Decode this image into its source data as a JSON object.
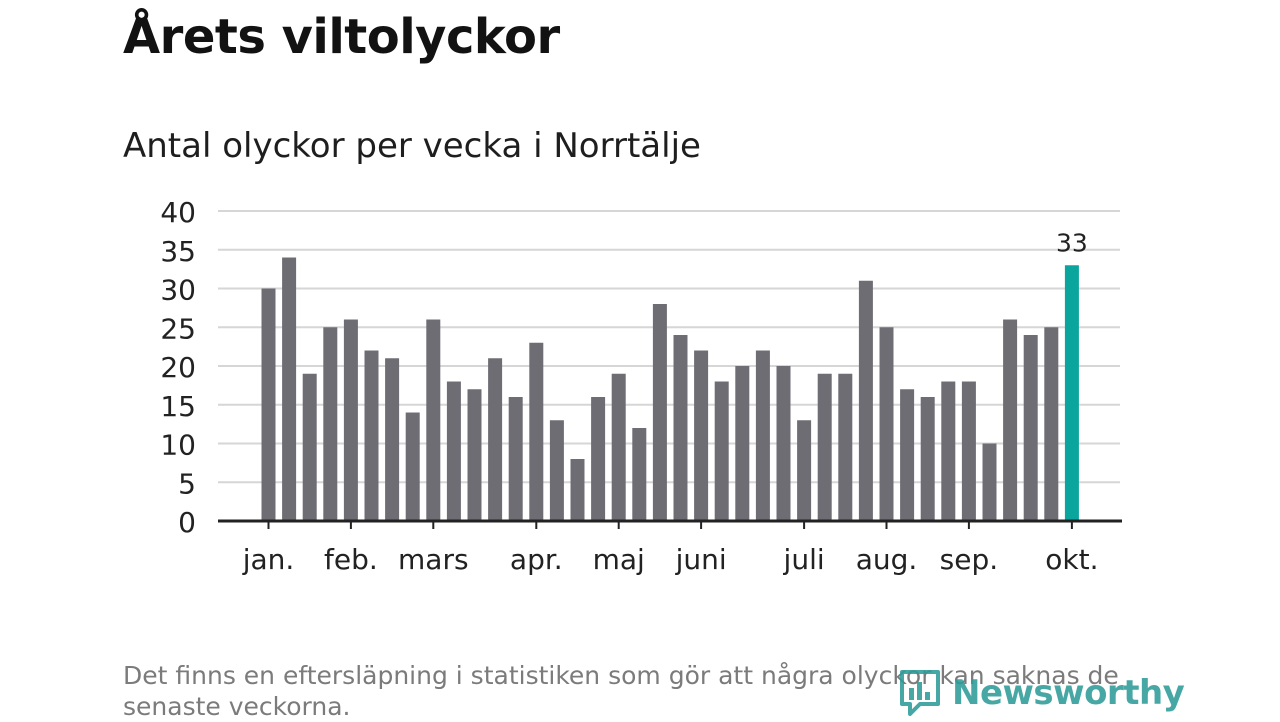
{
  "header": {
    "title": "Årets viltolyckor",
    "subtitle": "Antal olyckor per vecka i Norrtälje"
  },
  "footer": {
    "note": "Det finns en eftersläpning i statistiken som gör att några olyckor kan saknas de senaste veckorna.",
    "brand": "Newsworthy",
    "brand_icon": "bar-chart-icon"
  },
  "colors": {
    "bar": "#6f6d74",
    "highlight": "#0aa59c",
    "grid": "#d6d6d6",
    "axis": "#222222",
    "brand": "#2d9c98"
  },
  "chart_data": {
    "type": "bar",
    "title": "Antal olyckor per vecka i Norrtälje",
    "xlabel": "",
    "ylabel": "",
    "ylim": [
      0,
      40
    ],
    "yticks": [
      0,
      5,
      10,
      15,
      20,
      25,
      30,
      35,
      40
    ],
    "grid": true,
    "values": [
      30,
      34,
      19,
      25,
      26,
      22,
      21,
      14,
      26,
      18,
      17,
      21,
      16,
      23,
      13,
      8,
      16,
      19,
      12,
      28,
      24,
      22,
      18,
      20,
      22,
      20,
      13,
      19,
      19,
      31,
      25,
      17,
      16,
      18,
      18,
      10,
      26,
      24,
      25,
      33
    ],
    "highlight_index": 39,
    "highlight_label": "33",
    "month_labels": [
      {
        "label": "jan.",
        "bar_index": 0
      },
      {
        "label": "feb.",
        "bar_index": 4
      },
      {
        "label": "mars",
        "bar_index": 8
      },
      {
        "label": "apr.",
        "bar_index": 13
      },
      {
        "label": "maj",
        "bar_index": 17
      },
      {
        "label": "juni",
        "bar_index": 21
      },
      {
        "label": "juli",
        "bar_index": 26
      },
      {
        "label": "aug.",
        "bar_index": 30
      },
      {
        "label": "sep.",
        "bar_index": 34
      },
      {
        "label": "okt.",
        "bar_index": 39
      }
    ]
  }
}
